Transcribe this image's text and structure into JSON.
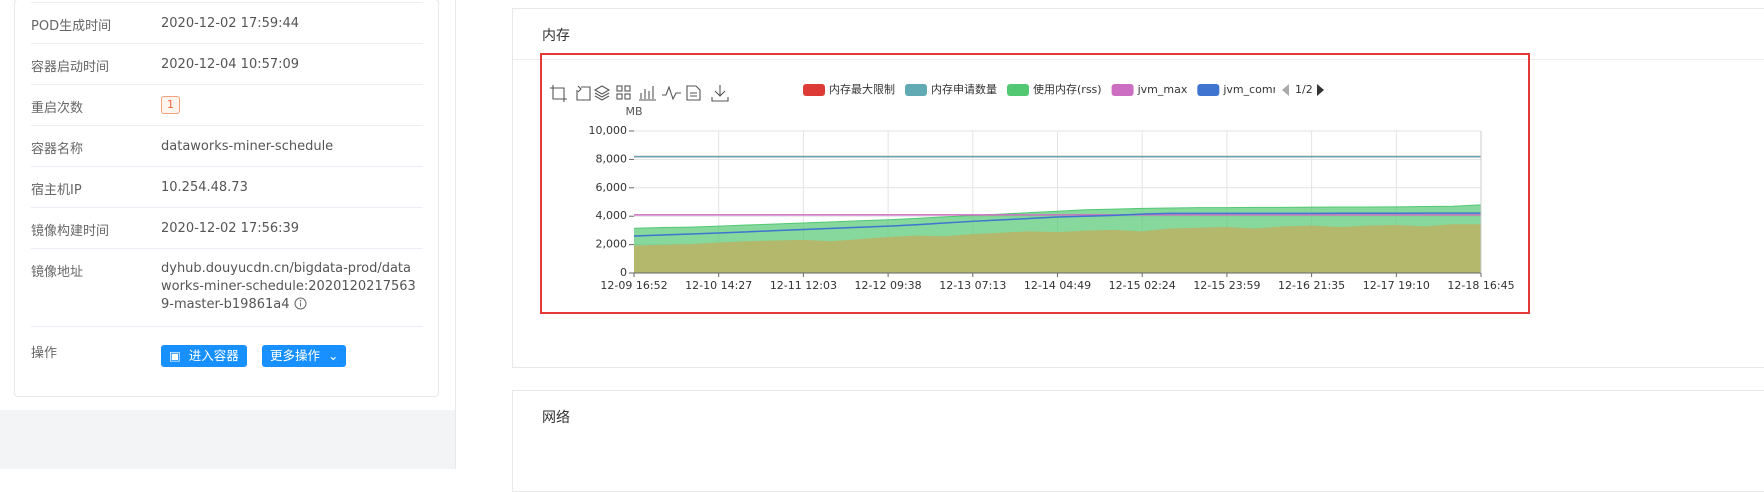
{
  "info": {
    "rows": [
      {
        "label": "POD生成时间",
        "value": "2020-12-02 17:59:44"
      },
      {
        "label": "容器启动时间",
        "value": "2020-12-04 10:57:09"
      },
      {
        "label": "重启次数",
        "value": "1"
      },
      {
        "label": "容器名称",
        "value": "dataworks-miner-schedule"
      },
      {
        "label": "宿主机IP",
        "value": "10.254.48.73"
      },
      {
        "label": "镜像构建时间",
        "value": "2020-12-02 17:56:39"
      },
      {
        "label": "镜像地址",
        "value": "dyhub.douyucdn.cn/bigdata-prod/dataworks-miner-schedule:20201202175639-master-b19861a4"
      }
    ],
    "actions": {
      "label": "操作",
      "buttons": [
        "进入容器",
        "更多操作"
      ]
    }
  },
  "panel_title": "内存",
  "next_panel_title": "网络",
  "chart_data": {
    "type": "line",
    "y_unit": "MB",
    "legend_page": "1/2",
    "categories": [
      "12-09 16:52",
      null,
      null,
      "12-10 14:27",
      null,
      null,
      "12-11 12:03",
      null,
      null,
      "12-12 09:38",
      null,
      null,
      "12-13 07:13",
      null,
      null,
      "12-14 04:49",
      null,
      null,
      "12-15 02:24",
      null,
      null,
      "12-15 23:59",
      null,
      null,
      "12-16 21:35",
      null,
      null,
      "12-17 19:10",
      null,
      null,
      "12-18 16:45"
    ],
    "ylim": [
      0,
      10000
    ],
    "yticks": [
      0,
      {
        "value": 2000,
        "label": "2,000"
      },
      {
        "value": 4000,
        "label": "4,000"
      },
      {
        "value": 6000,
        "label": "6,000"
      },
      {
        "value": 8000,
        "label": "8,000"
      },
      {
        "value": 10000,
        "label": "10,000"
      }
    ],
    "grid": true,
    "series": [
      {
        "name": "使用内存(rss)",
        "color": "#52c873",
        "area": true,
        "values": [
          3150,
          3200,
          3230,
          3300,
          3380,
          3450,
          3520,
          3600,
          3680,
          3750,
          3850,
          3950,
          4050,
          4150,
          4250,
          4350,
          4450,
          4500,
          4550,
          4580,
          4600,
          4600,
          4620,
          4620,
          4640,
          4650,
          4650,
          4660,
          4680,
          4700,
          4800
        ]
      },
      {
        "color": "#b3b86c",
        "area": true,
        "values": [
          1900,
          1950,
          2000,
          2100,
          2200,
          2250,
          2300,
          2200,
          2350,
          2500,
          2600,
          2550,
          2700,
          2800,
          2900,
          2850,
          2950,
          3000,
          2900,
          3100,
          3150,
          3200,
          3100,
          3250,
          3300,
          3200,
          3300,
          3350,
          3250,
          3400,
          3400
        ]
      },
      {
        "name": "内存最大限制",
        "color": "#dd3b35",
        "values": [
          8192,
          8192,
          8192,
          8192,
          8192,
          8192,
          8192,
          8192,
          8192,
          8192,
          8192,
          8192,
          8192,
          8192,
          8192,
          8192,
          8192,
          8192,
          8192,
          8192,
          8192,
          8192,
          8192,
          8192,
          8192,
          8192,
          8192,
          8192,
          8192,
          8192,
          8192
        ]
      },
      {
        "name": "内存申请数量",
        "color": "#62aab3",
        "values": [
          8192,
          8192,
          8192,
          8192,
          8192,
          8192,
          8192,
          8192,
          8192,
          8192,
          8192,
          8192,
          8192,
          8192,
          8192,
          8192,
          8192,
          8192,
          8192,
          8192,
          8192,
          8192,
          8192,
          8192,
          8192,
          8192,
          8192,
          8192,
          8192,
          8192,
          8192
        ]
      },
      {
        "name": "jvm_max",
        "color": "#cc6fc2",
        "values": [
          4096,
          4096,
          4096,
          4096,
          4096,
          4096,
          4096,
          4096,
          4096,
          4096,
          4096,
          4096,
          4096,
          4096,
          4096,
          4096,
          4096,
          4096,
          4096,
          4096,
          4096,
          4096,
          4096,
          4096,
          4096,
          4096,
          4096,
          4096,
          4096,
          4096,
          4096
        ]
      },
      {
        "name": "jvm_committ",
        "color": "#3f74d0",
        "values": [
          2600,
          2680,
          2750,
          2820,
          2900,
          2980,
          3060,
          3140,
          3220,
          3300,
          3400,
          3520,
          3640,
          3740,
          3840,
          3940,
          4000,
          4060,
          4150,
          4200,
          4200,
          4200,
          4200,
          4200,
          4200,
          4210,
          4210,
          4210,
          4220,
          4220,
          4220
        ]
      }
    ],
    "legend_order": [
      2,
      3,
      0,
      4,
      5
    ]
  }
}
